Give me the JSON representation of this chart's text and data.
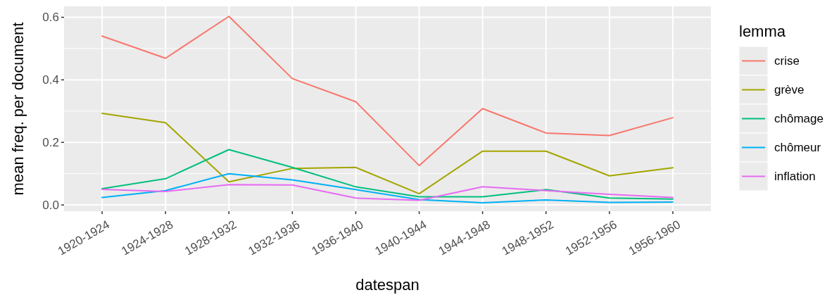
{
  "chart_data": {
    "type": "line",
    "xlabel": "datespan",
    "ylabel": "mean freq. per document",
    "legend_title": "lemma",
    "legend": "right",
    "grid": true,
    "categories": [
      "1920-1924",
      "1924-1928",
      "1928-1932",
      "1932-1936",
      "1936-1940",
      "1940-1944",
      "1944-1948",
      "1948-1952",
      "1952-1956",
      "1956-1960"
    ],
    "ylim": [
      -0.02,
      0.635
    ],
    "yticks": [
      {
        "value": 0,
        "label": "0.0"
      },
      0.2,
      0.4,
      0.6
    ],
    "series": [
      {
        "name": "crise",
        "color": "#f8766d",
        "values": [
          0.54,
          0.469,
          0.603,
          0.404,
          0.33,
          0.126,
          0.308,
          0.23,
          0.222,
          0.279
        ]
      },
      {
        "name": "grève",
        "color": "#a3a500",
        "values": [
          0.293,
          0.263,
          0.074,
          0.117,
          0.12,
          0.036,
          0.172,
          0.172,
          0.093,
          0.119
        ]
      },
      {
        "name": "chômage",
        "color": "#00bf7d",
        "values": [
          0.052,
          0.084,
          0.177,
          0.12,
          0.058,
          0.026,
          0.026,
          0.049,
          0.022,
          0.019
        ]
      },
      {
        "name": "chômeur",
        "color": "#00b0f6",
        "values": [
          0.024,
          0.046,
          0.1,
          0.08,
          0.049,
          0.017,
          0.007,
          0.016,
          0.008,
          0.009
        ]
      },
      {
        "name": "inflation",
        "color": "#e76bf3",
        "values": [
          0.05,
          0.043,
          0.065,
          0.064,
          0.022,
          0.015,
          0.058,
          0.046,
          0.034,
          0.024
        ]
      }
    ]
  }
}
